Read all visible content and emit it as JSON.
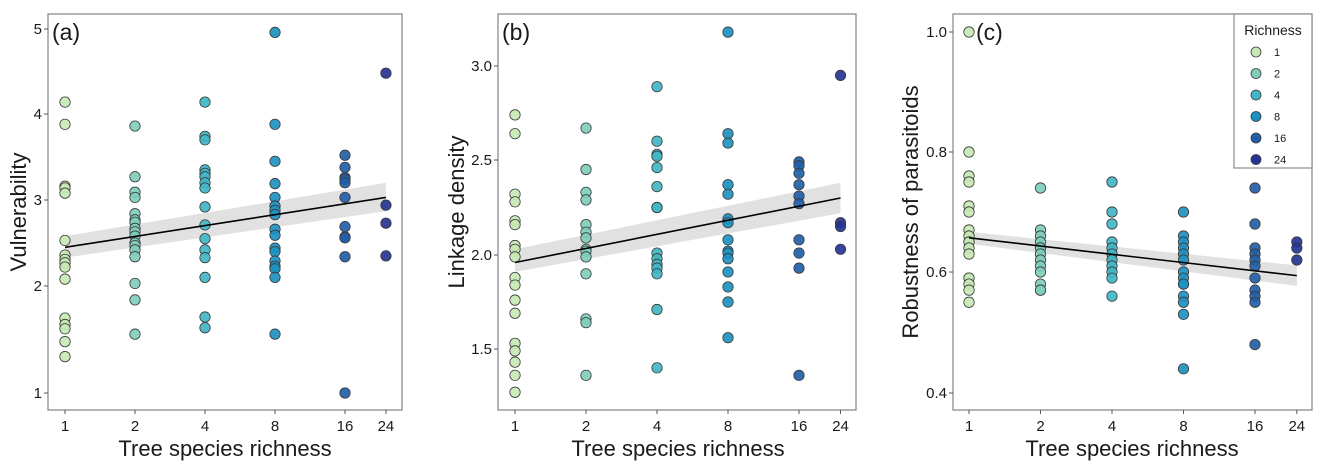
{
  "legend": {
    "title": "Richness",
    "position": "top-right",
    "items": [
      {
        "label": "1",
        "color": "#c7e9b4"
      },
      {
        "label": "2",
        "color": "#7fcdbb"
      },
      {
        "label": "4",
        "color": "#41b6c4"
      },
      {
        "label": "8",
        "color": "#1d91c0"
      },
      {
        "label": "16",
        "color": "#225ea8"
      },
      {
        "label": "24",
        "color": "#253494"
      }
    ]
  },
  "chart_data": [
    {
      "type": "scatter",
      "panel_label": "(a)",
      "xlabel": "Tree species richness",
      "ylabel": "Vulnerability",
      "x_scale": "log2",
      "x_ticks": [
        "1",
        "2",
        "4",
        "8",
        "16",
        "24"
      ],
      "y_ticks": [
        "1",
        "2",
        "3",
        "4",
        "5"
      ],
      "y_tick_values": [
        1,
        2,
        3,
        4,
        5
      ],
      "ylim": [
        0.85,
        5.17
      ],
      "grid": false,
      "groups": [
        {
          "richness": 1,
          "values": [
            4.14,
            3.88,
            3.16,
            3.14,
            3.08,
            2.53,
            2.36,
            2.31,
            2.27,
            2.22,
            2.08,
            1.7,
            1.64,
            1.6,
            1.48,
            1.34
          ]
        },
        {
          "richness": 2,
          "values": [
            3.86,
            3.27,
            3.09,
            3.03,
            2.84,
            2.77,
            2.74,
            2.67,
            2.63,
            2.58,
            2.5,
            2.47,
            2.42,
            2.34,
            2.03,
            1.87,
            1.55
          ]
        },
        {
          "richness": 4,
          "values": [
            4.14,
            3.74,
            3.7,
            3.35,
            3.31,
            3.27,
            3.2,
            3.14,
            2.92,
            2.71,
            2.55,
            2.42,
            2.33,
            2.1,
            1.71,
            1.61
          ]
        },
        {
          "richness": 8,
          "values": [
            4.96,
            3.88,
            3.45,
            3.19,
            3.03,
            2.93,
            2.88,
            2.83,
            2.66,
            2.59,
            2.44,
            2.4,
            2.29,
            2.23,
            2.2,
            2.1,
            1.55
          ]
        },
        {
          "richness": 16,
          "values": [
            3.52,
            3.38,
            3.26,
            3.24,
            3.2,
            3.03,
            2.69,
            2.57,
            2.56,
            2.34,
            1.0
          ]
        },
        {
          "richness": 24,
          "values": [
            4.48,
            2.94,
            2.73,
            2.35
          ]
        }
      ],
      "fit": {
        "x": [
          1,
          24
        ],
        "y": [
          2.45,
          3.03
        ],
        "ci_lower": [
          2.33,
          2.87
        ],
        "ci_upper": [
          2.58,
          3.2
        ]
      }
    },
    {
      "type": "scatter",
      "panel_label": "(b)",
      "xlabel": "Tree species richness",
      "ylabel": "Linkage density",
      "x_scale": "log2",
      "x_ticks": [
        "1",
        "2",
        "4",
        "8",
        "16",
        "24"
      ],
      "y_ticks": [
        "1.5",
        "2.0",
        "2.5",
        "3.0"
      ],
      "y_tick_values": [
        1.5,
        2.0,
        2.5,
        3.0
      ],
      "ylim": [
        1.2,
        3.27
      ],
      "grid": false,
      "groups": [
        {
          "richness": 1,
          "values": [
            2.74,
            2.64,
            2.32,
            2.28,
            2.18,
            2.16,
            2.05,
            2.03,
            1.99,
            1.88,
            1.84,
            1.76,
            1.69,
            1.53,
            1.49,
            1.43,
            1.36,
            1.27
          ]
        },
        {
          "richness": 2,
          "values": [
            2.67,
            2.45,
            2.33,
            2.29,
            2.16,
            2.12,
            2.09,
            2.03,
            2.02,
            1.99,
            1.9,
            1.66,
            1.64,
            1.36
          ]
        },
        {
          "richness": 4,
          "values": [
            2.89,
            2.6,
            2.53,
            2.52,
            2.46,
            2.36,
            2.25,
            2.25,
            2.01,
            1.98,
            1.95,
            1.93,
            1.9,
            1.71,
            1.4
          ]
        },
        {
          "richness": 8,
          "values": [
            3.18,
            2.64,
            2.59,
            2.37,
            2.32,
            2.19,
            2.17,
            2.08,
            2.02,
            2.01,
            1.98,
            1.91,
            1.83,
            1.75,
            1.56
          ]
        },
        {
          "richness": 16,
          "values": [
            2.49,
            2.47,
            2.43,
            2.37,
            2.31,
            2.27,
            2.08,
            2.01,
            1.93,
            1.36
          ]
        },
        {
          "richness": 24,
          "values": [
            2.95,
            2.17,
            2.15,
            2.03
          ]
        }
      ],
      "fit": {
        "x": [
          1,
          24
        ],
        "y": [
          1.96,
          2.3
        ],
        "ci_lower": [
          1.91,
          2.22
        ],
        "ci_upper": [
          2.03,
          2.38
        ]
      }
    },
    {
      "type": "scatter",
      "panel_label": "(c)",
      "xlabel": "Tree species richness",
      "ylabel": "Robustness of parasitoids",
      "x_scale": "log2",
      "x_ticks": [
        "1",
        "2",
        "4",
        "8",
        "16",
        "24"
      ],
      "y_ticks": [
        "0.4",
        "0.6",
        "0.8",
        "1.0"
      ],
      "y_tick_values": [
        0.4,
        0.6,
        0.8,
        1.0
      ],
      "ylim": [
        0.372,
        1.03
      ],
      "grid": false,
      "groups": [
        {
          "richness": 1,
          "values": [
            1.0,
            0.8,
            0.76,
            0.75,
            0.71,
            0.7,
            0.67,
            0.66,
            0.65,
            0.65,
            0.64,
            0.63,
            0.59,
            0.59,
            0.58,
            0.57,
            0.55
          ]
        },
        {
          "richness": 2,
          "values": [
            0.74,
            0.67,
            0.66,
            0.65,
            0.64,
            0.64,
            0.63,
            0.62,
            0.61,
            0.6,
            0.58,
            0.57,
            0.57
          ]
        },
        {
          "richness": 4,
          "values": [
            0.75,
            0.7,
            0.68,
            0.65,
            0.64,
            0.63,
            0.62,
            0.61,
            0.6,
            0.59,
            0.56
          ]
        },
        {
          "richness": 8,
          "values": [
            0.7,
            0.66,
            0.65,
            0.64,
            0.63,
            0.62,
            0.6,
            0.59,
            0.58,
            0.58,
            0.56,
            0.55,
            0.53,
            0.44
          ]
        },
        {
          "richness": 16,
          "values": [
            0.74,
            0.68,
            0.64,
            0.63,
            0.62,
            0.61,
            0.59,
            0.57,
            0.56,
            0.55,
            0.48
          ]
        },
        {
          "richness": 24,
          "values": [
            0.65,
            0.64,
            0.62
          ]
        }
      ],
      "fit": {
        "x": [
          1,
          24
        ],
        "y": [
          0.657,
          0.594
        ],
        "ci_lower": [
          0.647,
          0.577
        ],
        "ci_upper": [
          0.667,
          0.611
        ]
      }
    }
  ]
}
